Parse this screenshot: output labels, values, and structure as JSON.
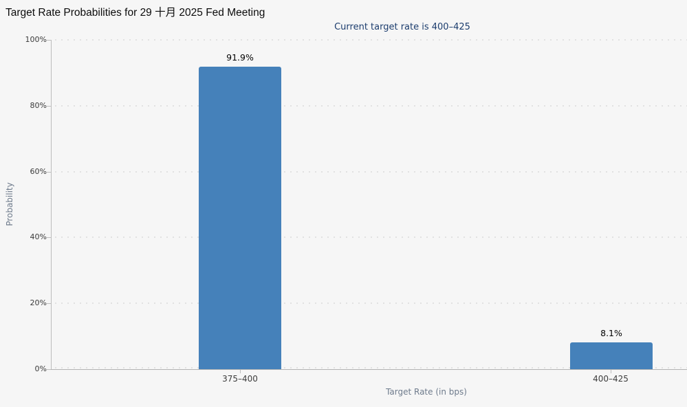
{
  "title": "Target Rate Probabilities for 29 十月 2025 Fed Meeting",
  "subtitle": "Current target rate is 400–425",
  "chart_data": {
    "type": "bar",
    "title": "Target Rate Probabilities for 29 十月 2025 Fed Meeting",
    "subtitle": "Current target rate is 400–425",
    "categories": [
      "375–400",
      "400–425"
    ],
    "values": [
      91.9,
      8.1
    ],
    "value_labels": [
      "91.9%",
      "8.1%"
    ],
    "xlabel": "Target Rate (in bps)",
    "ylabel": "Probability",
    "ylim": [
      0,
      100
    ],
    "ytick_labels": [
      "0%",
      "20%",
      "40%",
      "60%",
      "80%",
      "100%"
    ],
    "grid": "horizontal dotted",
    "legend": "none",
    "colors": {
      "bar": "#4581ba",
      "background": "#f6f6f6",
      "subtitle_text": "#1b3c6d",
      "axis_line": "#b3b3b3",
      "gridline": "#e1e1e1",
      "axis_title_text": "#6e7b8c"
    }
  }
}
